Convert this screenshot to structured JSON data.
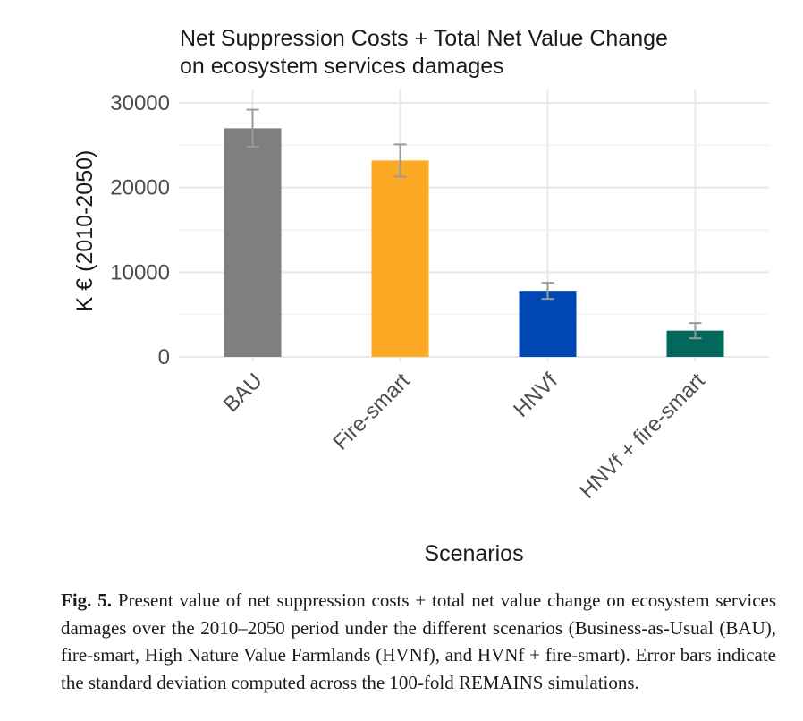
{
  "chart_data": {
    "type": "bar",
    "title": [
      "Net Suppression Costs + Total Net Value Change",
      "on ecosystem services damages"
    ],
    "xlabel": "Scenarios",
    "ylabel": "K € (2010-2050)",
    "categories": [
      "BAU",
      "Fire-smart",
      "HNVf",
      "HNVf + fire-smart"
    ],
    "values": [
      27000,
      23200,
      7800,
      3100
    ],
    "error": [
      2200,
      1900,
      950,
      900
    ],
    "colors": [
      "#7f7f7f",
      "#fca923",
      "#0047b3",
      "#00695c"
    ],
    "ylim": [
      0,
      30000
    ],
    "yticks": [
      "0",
      "10000",
      "20000",
      "30000"
    ],
    "grid": true,
    "legend": "none"
  },
  "caption": {
    "label": "Fig. 5.",
    "text": "Present value of net suppression costs + total net value change on ecosystem services damages over the 2010–2050 period under the different scenarios (Business-as-Usual (BAU), fire-smart, High Nature Value Farmlands (HVNf), and HVNf + fire-smart). Error bars indicate the standard deviation computed across the 100-fold REMAINS simulations."
  }
}
